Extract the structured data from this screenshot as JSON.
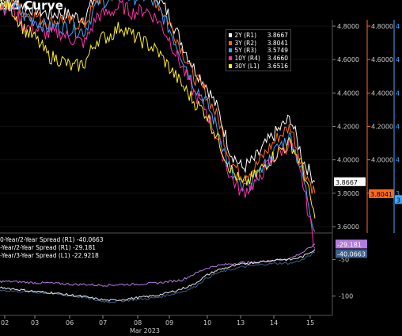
{
  "title": "eld Curve",
  "upper_legend": [
    {
      "name": "2Y (R1)",
      "value": "3.8667",
      "color": "#ffffff"
    },
    {
      "name": "3Y (R2)",
      "value": "3.8041",
      "color": "#ff6a1a"
    },
    {
      "name": "5Y (R3)",
      "value": "3.5749",
      "color": "#3fa7ff"
    },
    {
      "name": "10Y (R4)",
      "value": "3.4660",
      "color": "#ff2fa8"
    },
    {
      "name": "30Y (L1)",
      "value": "3.6516",
      "color": "#ffee22"
    }
  ],
  "lower_legend": [
    {
      "text": "0-Year/2-Year Spread (R1)  -40.0663"
    },
    {
      "text": "-Year/2-Year Spread (R1)  -29.181"
    },
    {
      "text": "-Year/3-Year Spread (L1)  -22.9218"
    }
  ],
  "footer": "",
  "chart_data": [
    {
      "type": "line",
      "x_ticks": [
        "02",
        "03",
        "06",
        "07",
        "08",
        "09",
        "10",
        "13",
        "14",
        "15"
      ],
      "x_month_label": "Mar 2023",
      "axis_inner": {
        "ticks": [
          "4.8000",
          "4.6000",
          "4.4000",
          "4.2000",
          "4.0000",
          "3.8000",
          "3.6000"
        ],
        "range": [
          3.6,
          4.8
        ],
        "color": "#ffffff"
      },
      "axis_outer": {
        "ticks": [
          "4.8000",
          "4.6000",
          "4.4000",
          "4.2000",
          "4.0000",
          "3.8000"
        ],
        "range": [
          3.6,
          4.8
        ],
        "color": "#ff6a1a"
      },
      "axis_right_edge": {
        "ticks": [
          "4",
          "4",
          "4",
          "4",
          "4",
          "3"
        ],
        "color": "#3fa7ff"
      },
      "value_tags": [
        {
          "value": "3.8667",
          "bg": "#ffffff",
          "fg": "#000000"
        },
        {
          "value": "3.8041",
          "bg": "#ff6a1a",
          "fg": "#000000"
        },
        {
          "value": "3",
          "bg": "#3fa7ff",
          "fg": "#000000"
        }
      ],
      "series": [
        {
          "name": "2Y (R1)",
          "color": "#ffffff",
          "values": [
            4.95,
            4.97,
            4.92,
            4.9,
            4.87,
            4.88,
            4.86,
            4.85,
            5.0,
            5.02,
            5.05,
            5.03,
            5.04,
            4.98,
            4.86,
            4.7,
            4.55,
            4.45,
            4.3,
            4.05,
            3.95,
            4.0,
            4.1,
            4.18,
            4.25,
            4.0,
            3.87
          ]
        },
        {
          "name": "3Y (R2)",
          "color": "#ff6a1a",
          "values": [
            4.92,
            4.94,
            4.88,
            4.86,
            4.82,
            4.84,
            4.82,
            4.81,
            4.96,
            4.98,
            5.01,
            4.99,
            5.0,
            4.94,
            4.82,
            4.66,
            4.5,
            4.4,
            4.25,
            4.0,
            3.9,
            3.95,
            4.05,
            4.14,
            4.2,
            3.96,
            3.8
          ]
        },
        {
          "name": "5Y (R3)",
          "color": "#3fa7ff",
          "values": [
            4.9,
            4.92,
            4.86,
            4.83,
            4.79,
            4.8,
            4.78,
            4.77,
            4.94,
            4.96,
            4.99,
            4.97,
            4.98,
            4.92,
            4.78,
            4.62,
            4.45,
            4.35,
            4.18,
            3.93,
            3.82,
            3.88,
            3.98,
            4.08,
            4.14,
            3.9,
            3.57
          ]
        },
        {
          "name": "10Y (R4)",
          "color": "#ff2fa8",
          "values": [
            4.92,
            4.9,
            4.8,
            4.78,
            4.75,
            4.76,
            4.72,
            4.7,
            4.86,
            4.88,
            4.92,
            4.88,
            4.9,
            4.84,
            4.72,
            4.56,
            4.4,
            4.3,
            4.12,
            3.9,
            3.8,
            3.86,
            3.96,
            4.04,
            4.1,
            3.86,
            3.47
          ]
        },
        {
          "name": "30Y (L1)",
          "color": "#ffee22",
          "values": [
            4.95,
            4.9,
            4.78,
            4.72,
            4.62,
            4.6,
            4.55,
            4.58,
            4.72,
            4.74,
            4.8,
            4.74,
            4.7,
            4.65,
            4.55,
            4.45,
            4.35,
            4.28,
            4.12,
            3.95,
            3.85,
            3.9,
            3.98,
            4.05,
            4.1,
            3.95,
            3.65
          ]
        }
      ]
    },
    {
      "type": "line",
      "axis": {
        "ticks": [
          "-50",
          "-100"
        ],
        "range": [
          -120,
          -20
        ]
      },
      "value_tags": [
        {
          "value": "-29.181",
          "bg": "#b47be0",
          "fg": "#ffffff"
        },
        {
          "value": "-40.0663",
          "bg": "#3a5f8c",
          "fg": "#ffffff"
        }
      ],
      "series": [
        {
          "color": "#b47be0",
          "values": [
            -80,
            -80,
            -81,
            -82,
            -82,
            -83,
            -84,
            -84,
            -85,
            -85,
            -84,
            -84,
            -83,
            -82,
            -80,
            -78,
            -70,
            -62,
            -58,
            -56,
            -54,
            -54,
            -52,
            -50,
            -48,
            -40,
            -29
          ]
        },
        {
          "color": "#3a5f8c",
          "values": [
            -92,
            -93,
            -94,
            -95,
            -96,
            -98,
            -100,
            -102,
            -106,
            -108,
            -107,
            -105,
            -104,
            -102,
            -98,
            -94,
            -88,
            -76,
            -68,
            -64,
            -60,
            -58,
            -56,
            -55,
            -55,
            -50,
            -40
          ]
        },
        {
          "color": "#e8e8e8",
          "values": [
            -88,
            -90,
            -92,
            -94,
            -95,
            -97,
            -99,
            -101,
            -104,
            -106,
            -105,
            -103,
            -101,
            -99,
            -95,
            -90,
            -84,
            -72,
            -64,
            -60,
            -56,
            -54,
            -52,
            -50,
            -50,
            -46,
            -36
          ]
        }
      ]
    }
  ]
}
